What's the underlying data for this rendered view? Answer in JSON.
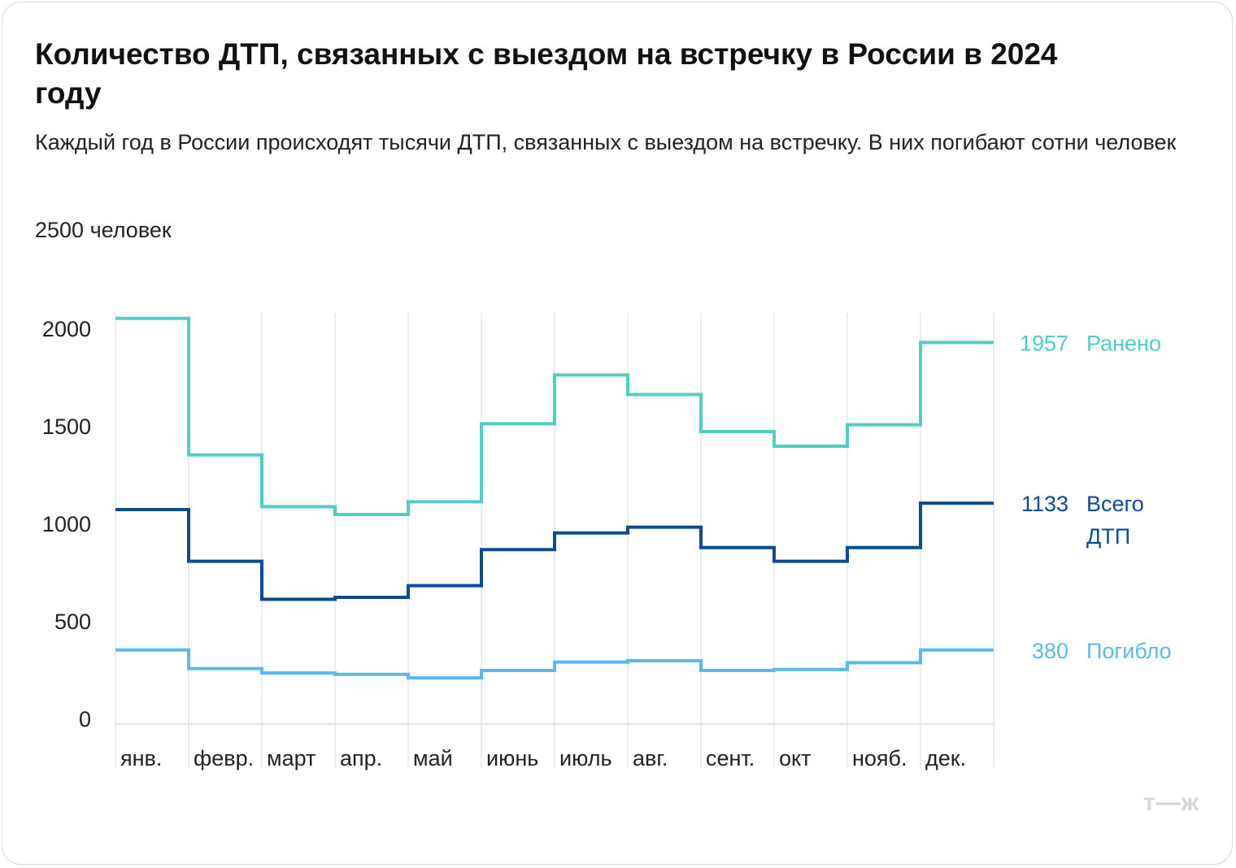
{
  "title": "Количество ДТП, связанных с выездом на встречку в России в 2024 году",
  "subtitle": "Каждый год в России происходят тысячи ДТП, связанных с выездом на встречку. В них погибают сотни человек",
  "unit_label": "2500 человек",
  "logo": "т—ж",
  "chart_data": {
    "type": "line",
    "step": true,
    "categories": [
      "янв.",
      "февр.",
      "март",
      "апр.",
      "май",
      "июнь",
      "июль",
      "авг.",
      "сент.",
      "окт",
      "нояб.",
      "дек."
    ],
    "yticks": [
      0,
      500,
      1000,
      1500,
      2000
    ],
    "ylim": [
      0,
      2500
    ],
    "grid": "vertical",
    "series": [
      {
        "key": "injured",
        "name": "Ранено",
        "color": "#4fcfc3",
        "values": [
          2080,
          1380,
          1115,
          1075,
          1140,
          1540,
          1790,
          1690,
          1500,
          1425,
          1535,
          1957
        ],
        "end_value": "1957"
      },
      {
        "key": "total",
        "name": "Всего ДТП",
        "color": "#0d4a94",
        "values": [
          1100,
          835,
          640,
          650,
          710,
          895,
          980,
          1010,
          905,
          835,
          905,
          1133
        ],
        "end_value": "1133"
      },
      {
        "key": "killed",
        "name": "Погибло",
        "color": "#5ab8f2",
        "values": [
          380,
          285,
          262,
          255,
          237,
          275,
          318,
          325,
          275,
          280,
          315,
          380
        ],
        "end_value": "380"
      }
    ]
  }
}
